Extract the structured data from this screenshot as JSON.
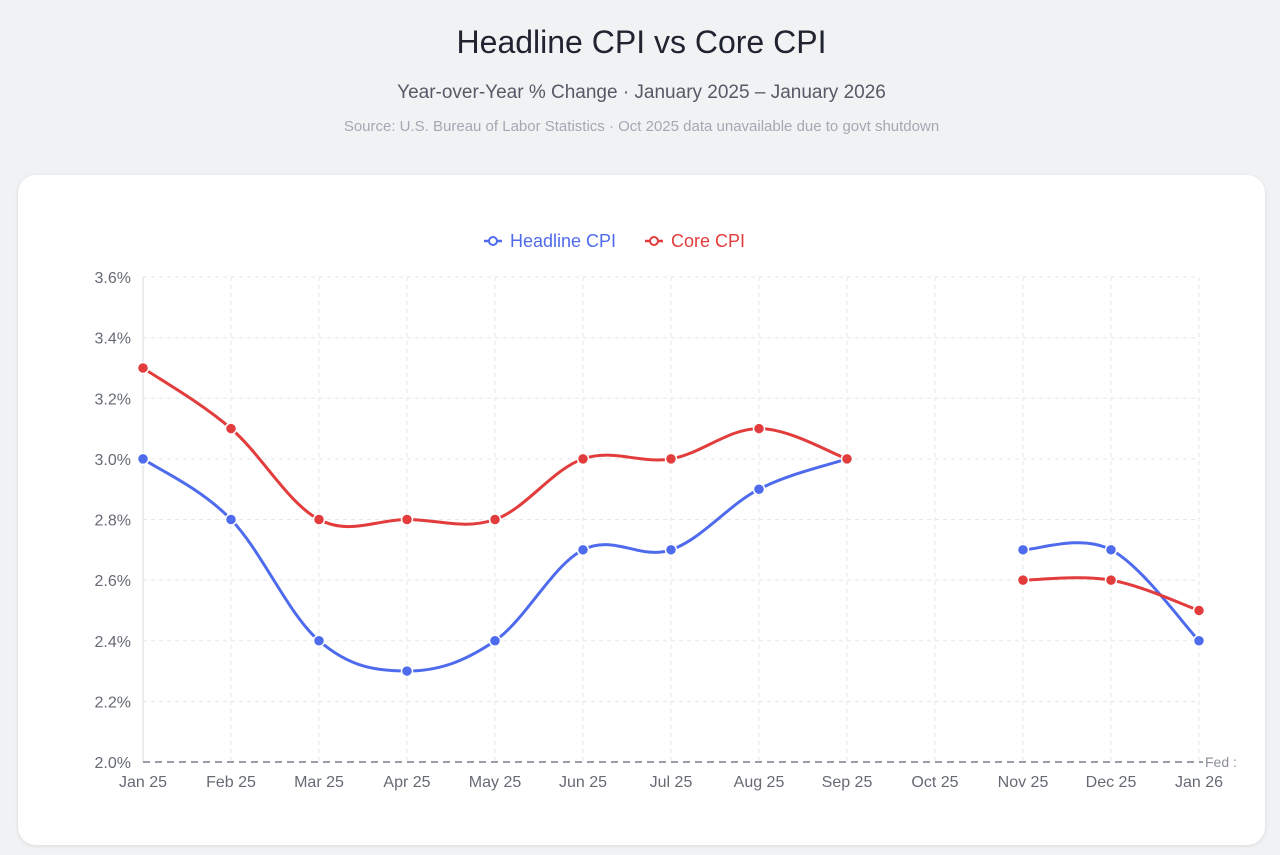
{
  "title": "Headline CPI vs Core CPI",
  "subtitle": "Year-over-Year % Change · January 2025 – January 2026",
  "source": "Source: U.S. Bureau of Labor Statistics · Oct 2025 data unavailable due to govt shutdown",
  "chart_data": {
    "type": "line",
    "categories": [
      "Jan 25",
      "Feb 25",
      "Mar 25",
      "Apr 25",
      "May 25",
      "Jun 25",
      "Jul 25",
      "Aug 25",
      "Sep 25",
      "Oct 25",
      "Nov 25",
      "Dec 25",
      "Jan 26"
    ],
    "series": [
      {
        "name": "Headline CPI",
        "color": "#4f6bed",
        "values": [
          3.0,
          2.8,
          2.4,
          2.3,
          2.4,
          2.7,
          2.7,
          2.9,
          3.0,
          null,
          2.7,
          2.7,
          2.4
        ]
      },
      {
        "name": "Core CPI",
        "color": "#e23c3c",
        "values": [
          3.3,
          3.1,
          2.8,
          2.8,
          2.8,
          3.0,
          3.0,
          3.1,
          3.0,
          null,
          2.6,
          2.6,
          2.5
        ]
      }
    ],
    "y_ticks": [
      "2.0%",
      "2.2%",
      "2.4%",
      "2.6%",
      "2.8%",
      "3.0%",
      "3.2%",
      "3.4%",
      "3.6%"
    ],
    "ylim": [
      2.0,
      3.6
    ],
    "grid": true,
    "grid_style": "dashed",
    "legend_position": "top-center",
    "baseline": {
      "value": 2.0,
      "label": "Fed :",
      "style": "dashed"
    }
  }
}
